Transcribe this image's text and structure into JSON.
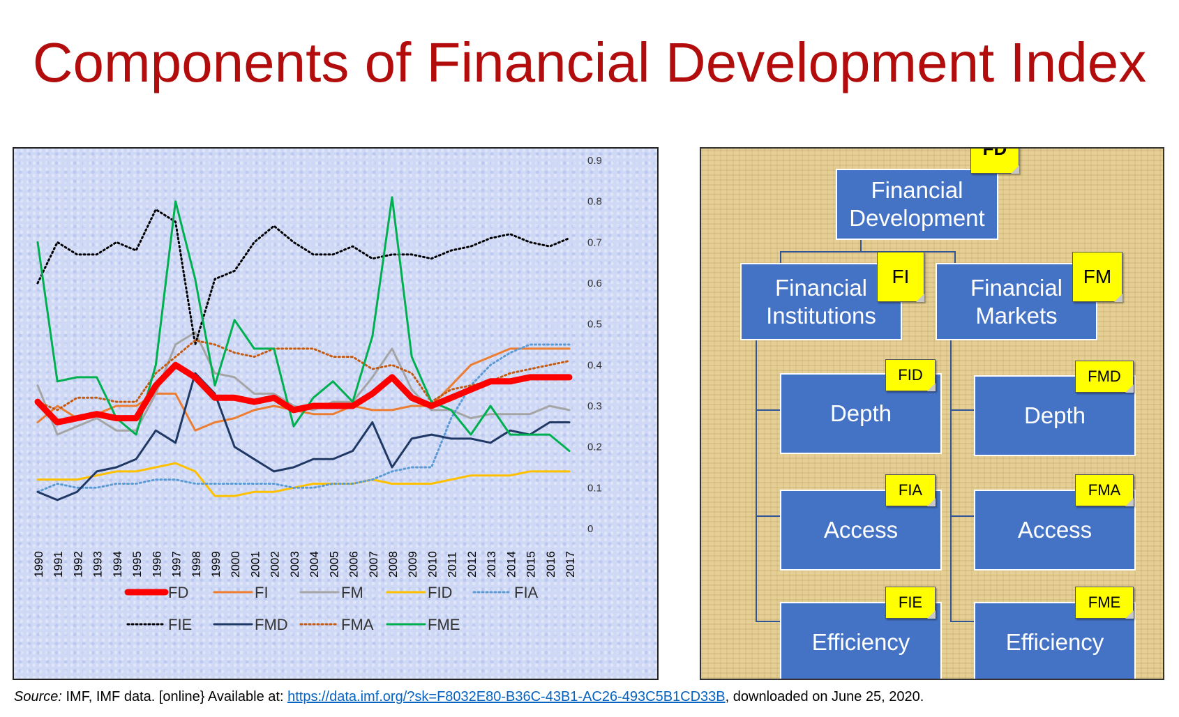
{
  "title": "Components of Financial Development Index",
  "chart_data": {
    "type": "line",
    "categories": [
      "1990",
      "1991",
      "1992",
      "1993",
      "1994",
      "1995",
      "1996",
      "1997",
      "1998",
      "1999",
      "2000",
      "2001",
      "2002",
      "2003",
      "2004",
      "2005",
      "2006",
      "2007",
      "2008",
      "2009",
      "2010",
      "2011",
      "2012",
      "2013",
      "2014",
      "2015",
      "2016",
      "2017"
    ],
    "ylim": [
      0,
      0.9
    ],
    "yticks": [
      "0",
      "0.1",
      "0.2",
      "0.3",
      "0.4",
      "0.5",
      "0.6",
      "0.7",
      "0.8",
      "0.9"
    ],
    "y_axis_side": "right",
    "grid": false,
    "legend_position": "bottom",
    "series": [
      {
        "name": "FD",
        "color": "#FF0000",
        "dash": "solid",
        "width": "thick",
        "values": [
          0.31,
          0.26,
          0.27,
          0.28,
          0.27,
          0.27,
          0.35,
          0.4,
          0.37,
          0.32,
          0.32,
          0.31,
          0.32,
          0.29,
          0.3,
          0.3,
          0.3,
          0.33,
          0.37,
          0.32,
          0.3,
          0.32,
          0.34,
          0.36,
          0.36,
          0.37,
          0.37,
          0.37
        ]
      },
      {
        "name": "FI",
        "color": "#ED7D31",
        "dash": "solid",
        "width": "normal",
        "values": [
          0.26,
          0.3,
          0.27,
          0.28,
          0.3,
          0.3,
          0.33,
          0.33,
          0.24,
          0.26,
          0.27,
          0.29,
          0.3,
          0.29,
          0.28,
          0.28,
          0.3,
          0.29,
          0.29,
          0.3,
          0.3,
          0.35,
          0.4,
          0.42,
          0.44,
          0.44,
          0.44,
          0.44
        ]
      },
      {
        "name": "FM",
        "color": "#A5A5A5",
        "dash": "solid",
        "width": "normal",
        "values": [
          0.35,
          0.23,
          0.25,
          0.27,
          0.24,
          0.24,
          0.33,
          0.45,
          0.48,
          0.38,
          0.37,
          0.33,
          0.33,
          0.3,
          0.29,
          0.31,
          0.31,
          0.37,
          0.44,
          0.34,
          0.29,
          0.29,
          0.27,
          0.28,
          0.28,
          0.28,
          0.3,
          0.29
        ]
      },
      {
        "name": "FID",
        "color": "#FFC000",
        "dash": "solid",
        "width": "normal",
        "values": [
          0.12,
          0.12,
          0.12,
          0.13,
          0.14,
          0.14,
          0.15,
          0.16,
          0.14,
          0.08,
          0.08,
          0.09,
          0.09,
          0.1,
          0.11,
          0.11,
          0.11,
          0.12,
          0.11,
          0.11,
          0.11,
          0.12,
          0.13,
          0.13,
          0.13,
          0.14,
          0.14,
          0.14
        ]
      },
      {
        "name": "FIA",
        "color": "#5B9BD5",
        "dash": "dotted",
        "width": "normal",
        "values": [
          0.09,
          0.11,
          0.1,
          0.1,
          0.11,
          0.11,
          0.12,
          0.12,
          0.11,
          0.11,
          0.11,
          0.11,
          0.11,
          0.1,
          0.1,
          0.11,
          0.11,
          0.12,
          0.14,
          0.15,
          0.15,
          0.27,
          0.35,
          0.4,
          0.43,
          0.45,
          0.45,
          0.45
        ]
      },
      {
        "name": "FIE",
        "color": "#000000",
        "dash": "dotted",
        "width": "normal",
        "values": [
          0.6,
          0.7,
          0.67,
          0.67,
          0.7,
          0.68,
          0.78,
          0.75,
          0.45,
          0.61,
          0.63,
          0.7,
          0.74,
          0.7,
          0.67,
          0.67,
          0.69,
          0.66,
          0.67,
          0.67,
          0.66,
          0.68,
          0.69,
          0.71,
          0.72,
          0.7,
          0.69,
          0.71
        ]
      },
      {
        "name": "FMD",
        "color": "#203864",
        "dash": "solid",
        "width": "normal",
        "values": [
          0.09,
          0.07,
          0.09,
          0.14,
          0.15,
          0.17,
          0.24,
          0.21,
          0.38,
          0.33,
          0.2,
          0.17,
          0.14,
          0.15,
          0.17,
          0.17,
          0.19,
          0.26,
          0.15,
          0.22,
          0.23,
          0.22,
          0.22,
          0.21,
          0.24,
          0.23,
          0.26,
          0.26
        ]
      },
      {
        "name": "FMA",
        "color": "#C55A11",
        "dash": "dotted",
        "width": "normal",
        "values": [
          0.31,
          0.29,
          0.32,
          0.32,
          0.31,
          0.31,
          0.38,
          0.42,
          0.46,
          0.45,
          0.43,
          0.42,
          0.44,
          0.44,
          0.44,
          0.42,
          0.42,
          0.39,
          0.4,
          0.38,
          0.31,
          0.34,
          0.35,
          0.36,
          0.38,
          0.39,
          0.4,
          0.41
        ]
      },
      {
        "name": "FME",
        "color": "#00B050",
        "dash": "solid",
        "width": "normal",
        "values": [
          0.7,
          0.36,
          0.37,
          0.37,
          0.27,
          0.23,
          0.4,
          0.8,
          0.61,
          0.35,
          0.51,
          0.44,
          0.44,
          0.25,
          0.32,
          0.36,
          0.31,
          0.47,
          0.81,
          0.42,
          0.31,
          0.29,
          0.23,
          0.3,
          0.23,
          0.23,
          0.23,
          0.19
        ]
      }
    ]
  },
  "diagram": {
    "root": {
      "label_line1": "Financial",
      "label_line2": "Development",
      "tag": "FD"
    },
    "fi": {
      "label_line1": "Financial",
      "label_line2": "Institutions",
      "tag": "FI"
    },
    "fm": {
      "label_line1": "Financial",
      "label_line2": "Markets",
      "tag": "FM"
    },
    "fi_children": [
      {
        "label": "Depth",
        "tag": "FID"
      },
      {
        "label": "Access",
        "tag": "FIA"
      },
      {
        "label": "Efficiency",
        "tag": "FIE"
      }
    ],
    "fm_children": [
      {
        "label": "Depth",
        "tag": "FMD"
      },
      {
        "label": "Access",
        "tag": "FMA"
      },
      {
        "label": "Efficiency",
        "tag": "FME"
      }
    ],
    "colors": {
      "box": "#4472C4",
      "tag": "#FFFF00",
      "connector": "#2F5597"
    }
  },
  "source": {
    "label": "Source:",
    "text_before": " IMF, IMF data. [online} Available at: ",
    "link": "https://data.imf.org/?sk=F8032E80-B36C-43B1-AC26-493C5B1CD33B",
    "text_after": ", downloaded on June 25, 2020."
  }
}
